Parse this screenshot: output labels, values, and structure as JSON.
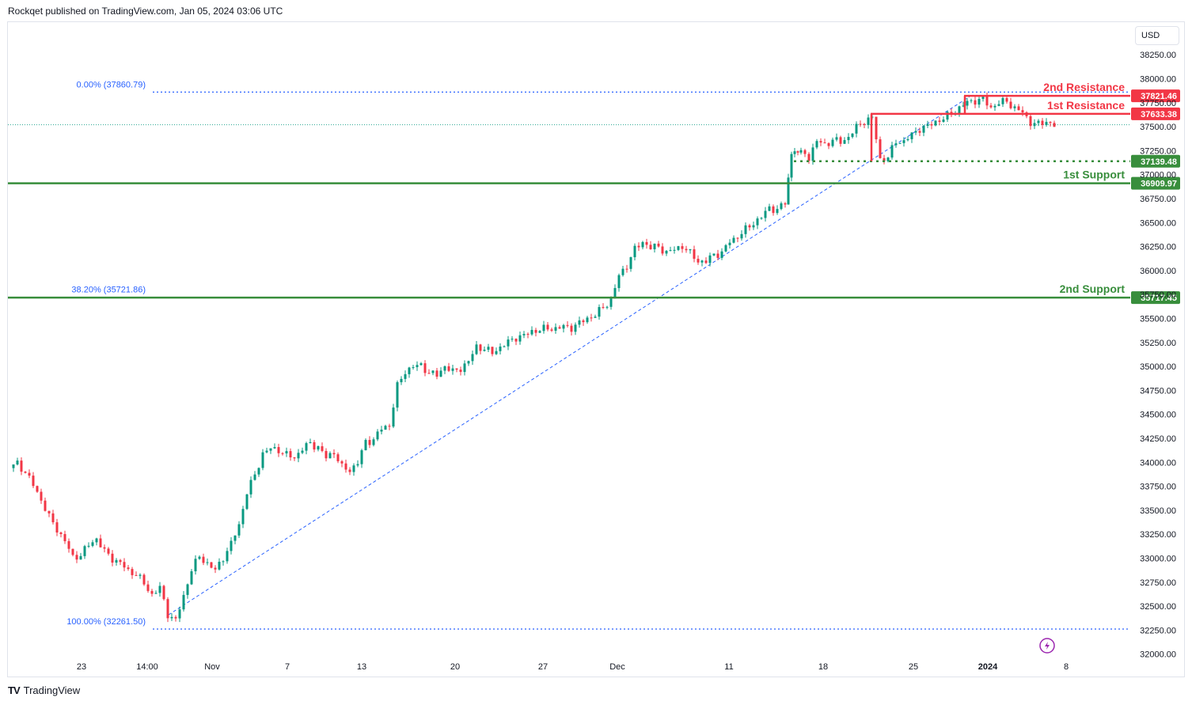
{
  "header": {
    "text": "Rockqet published on TradingView.com, Jan 05, 2024 03:06 UTC"
  },
  "footer": {
    "brand": "TradingView",
    "logo": "tradingview-logo"
  },
  "currency": "USD",
  "colors": {
    "up": "#089981",
    "down": "#f23645",
    "resistance": "#f23645",
    "support": "#388e3c",
    "fib": "#2962ff",
    "grid": "#e0e3eb"
  },
  "chart_data": {
    "type": "candlestick",
    "title": "",
    "y_axis": {
      "min": 32000,
      "max": 38500,
      "ticks": [
        "38250.00",
        "38000.00",
        "37750.00",
        "37500.00",
        "37250.00",
        "37000.00",
        "36750.00",
        "36500.00",
        "36250.00",
        "36000.00",
        "35750.00",
        "35500.00",
        "35250.00",
        "35000.00",
        "34750.00",
        "34500.00",
        "34250.00",
        "34000.00",
        "33750.00",
        "33500.00",
        "33250.00",
        "33000.00",
        "32750.00",
        "32500.00",
        "32250.00",
        "32000.00"
      ]
    },
    "x_axis": {
      "ticks": [
        "23",
        "14:00",
        "Nov",
        "7",
        "13",
        "20",
        "27",
        "Dec",
        "11",
        "18",
        "25",
        "2024",
        "8"
      ]
    },
    "levels": [
      {
        "name": "2nd Resistance",
        "value": "37821.46",
        "type": "resistance"
      },
      {
        "name": "1st Resistance",
        "value": "37633.38",
        "type": "resistance"
      },
      {
        "name": "",
        "value": "37139.48",
        "type": "support-dotted"
      },
      {
        "name": "1st Support",
        "value": "36909.97",
        "type": "support"
      },
      {
        "name": "2nd Support",
        "value": "35717.45",
        "type": "support"
      }
    ],
    "fib_levels": [
      {
        "label": "0.00% (37860.79)",
        "value": 37860.79
      },
      {
        "label": "38.20% (35721.86)",
        "value": 35721.86
      },
      {
        "label": "100.00% (32261.50)",
        "value": 32261.5
      }
    ],
    "last_price": 37520,
    "close_path": [
      [
        0,
        33940
      ],
      [
        10,
        33980
      ],
      [
        20,
        33910
      ],
      [
        30,
        33760
      ],
      [
        40,
        33600
      ],
      [
        50,
        33440
      ],
      [
        60,
        33300
      ],
      [
        70,
        33180
      ],
      [
        80,
        33000
      ],
      [
        90,
        33050
      ],
      [
        100,
        33130
      ],
      [
        110,
        33200
      ],
      [
        120,
        33080
      ],
      [
        130,
        32990
      ],
      [
        140,
        32950
      ],
      [
        150,
        32860
      ],
      [
        160,
        32850
      ],
      [
        170,
        32720
      ],
      [
        180,
        32620
      ],
      [
        190,
        32700
      ],
      [
        200,
        32410
      ],
      [
        210,
        32350
      ],
      [
        220,
        32600
      ],
      [
        230,
        32900
      ],
      [
        240,
        33000
      ],
      [
        250,
        32950
      ],
      [
        260,
        32880
      ],
      [
        270,
        33000
      ],
      [
        280,
        33150
      ],
      [
        290,
        33350
      ],
      [
        300,
        33700
      ],
      [
        310,
        33850
      ],
      [
        320,
        34100
      ],
      [
        330,
        34150
      ],
      [
        340,
        34120
      ],
      [
        350,
        34080
      ],
      [
        360,
        34050
      ],
      [
        370,
        34150
      ],
      [
        380,
        34180
      ],
      [
        390,
        34170
      ],
      [
        400,
        34050
      ],
      [
        410,
        34100
      ],
      [
        420,
        33950
      ],
      [
        430,
        33920
      ],
      [
        440,
        34000
      ],
      [
        450,
        34200
      ],
      [
        460,
        34250
      ],
      [
        470,
        34350
      ],
      [
        480,
        34380
      ],
      [
        490,
        34800
      ],
      [
        500,
        34950
      ],
      [
        510,
        35000
      ],
      [
        520,
        35000
      ],
      [
        530,
        34950
      ],
      [
        540,
        34900
      ],
      [
        550,
        35000
      ],
      [
        560,
        34950
      ],
      [
        570,
        34980
      ],
      [
        580,
        35050
      ],
      [
        590,
        35200
      ],
      [
        600,
        35200
      ],
      [
        610,
        35130
      ],
      [
        620,
        35200
      ],
      [
        630,
        35260
      ],
      [
        640,
        35300
      ],
      [
        650,
        35320
      ],
      [
        660,
        35360
      ],
      [
        670,
        35400
      ],
      [
        680,
        35380
      ],
      [
        690,
        35400
      ],
      [
        700,
        35420
      ],
      [
        710,
        35400
      ],
      [
        720,
        35450
      ],
      [
        730,
        35500
      ],
      [
        740,
        35550
      ],
      [
        750,
        35600
      ],
      [
        760,
        35700
      ],
      [
        770,
        35950
      ],
      [
        780,
        36050
      ],
      [
        790,
        36220
      ],
      [
        800,
        36300
      ],
      [
        810,
        36250
      ],
      [
        820,
        36230
      ],
      [
        830,
        36200
      ],
      [
        840,
        36220
      ],
      [
        850,
        36250
      ],
      [
        860,
        36180
      ],
      [
        870,
        36100
      ],
      [
        880,
        36100
      ],
      [
        890,
        36150
      ],
      [
        900,
        36200
      ],
      [
        910,
        36300
      ],
      [
        920,
        36350
      ],
      [
        930,
        36430
      ],
      [
        940,
        36500
      ],
      [
        950,
        36560
      ],
      [
        960,
        36640
      ],
      [
        970,
        36650
      ],
      [
        980,
        36700
      ],
      [
        988,
        37220
      ],
      [
        1000,
        37270
      ],
      [
        1010,
        37180
      ],
      [
        1020,
        37350
      ],
      [
        1030,
        37300
      ],
      [
        1040,
        37380
      ],
      [
        1050,
        37330
      ],
      [
        1060,
        37390
      ],
      [
        1070,
        37500
      ],
      [
        1080,
        37560
      ],
      [
        1090,
        37590
      ],
      [
        1100,
        37150
      ],
      [
        1110,
        37200
      ],
      [
        1120,
        37330
      ],
      [
        1130,
        37350
      ],
      [
        1140,
        37420
      ],
      [
        1150,
        37480
      ],
      [
        1160,
        37500
      ],
      [
        1170,
        37550
      ],
      [
        1180,
        37600
      ],
      [
        1190,
        37620
      ],
      [
        1200,
        37700
      ],
      [
        1210,
        37760
      ],
      [
        1220,
        37770
      ],
      [
        1230,
        37780
      ],
      [
        1240,
        37700
      ],
      [
        1250,
        37760
      ],
      [
        1260,
        37750
      ],
      [
        1270,
        37700
      ],
      [
        1280,
        37650
      ],
      [
        1290,
        37540
      ],
      [
        1300,
        37520
      ],
      [
        1310,
        37560
      ],
      [
        1320,
        37520
      ]
    ]
  }
}
